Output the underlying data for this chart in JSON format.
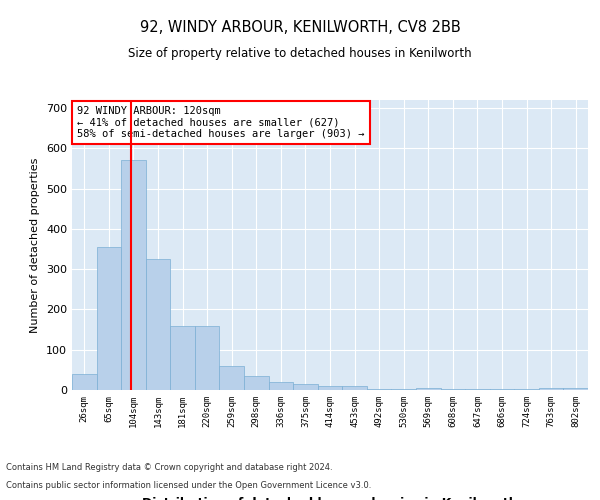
{
  "title1": "92, WINDY ARBOUR, KENILWORTH, CV8 2BB",
  "title2": "Size of property relative to detached houses in Kenilworth",
  "xlabel": "Distribution of detached houses by size in Kenilworth",
  "ylabel": "Number of detached properties",
  "footer1": "Contains HM Land Registry data © Crown copyright and database right 2024.",
  "footer2": "Contains public sector information licensed under the Open Government Licence v3.0.",
  "bar_labels": [
    "26sqm",
    "65sqm",
    "104sqm",
    "143sqm",
    "181sqm",
    "220sqm",
    "259sqm",
    "298sqm",
    "336sqm",
    "375sqm",
    "414sqm",
    "453sqm",
    "492sqm",
    "530sqm",
    "569sqm",
    "608sqm",
    "647sqm",
    "686sqm",
    "724sqm",
    "763sqm",
    "802sqm"
  ],
  "bar_values": [
    40,
    355,
    570,
    325,
    160,
    160,
    60,
    35,
    20,
    15,
    10,
    10,
    2,
    2,
    5,
    2,
    2,
    2,
    2,
    5,
    5
  ],
  "bar_color": "#b8d0ea",
  "bar_edge_color": "#7aafd4",
  "background_color": "#dce9f5",
  "grid_color": "#ffffff",
  "annotation_text": "92 WINDY ARBOUR: 120sqm\n← 41% of detached houses are smaller (627)\n58% of semi-detached houses are larger (903) →",
  "ylim": [
    0,
    720
  ],
  "yticks": [
    0,
    100,
    200,
    300,
    400,
    500,
    600,
    700
  ]
}
